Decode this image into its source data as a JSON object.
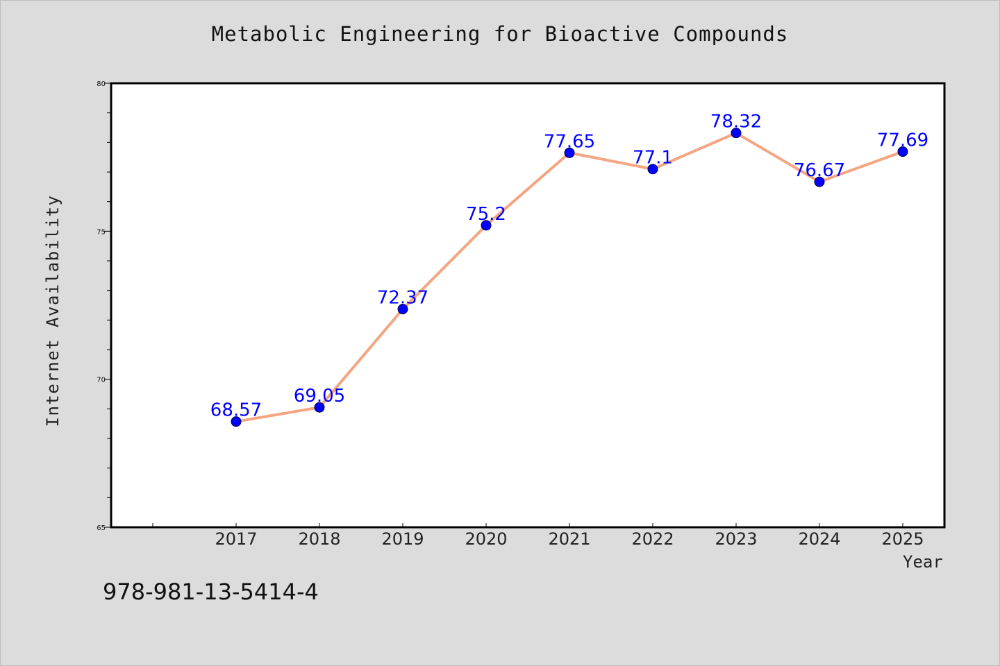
{
  "chart_data": {
    "type": "line",
    "title": "Metabolic Engineering for Bioactive Compounds",
    "xlabel": "Year",
    "ylabel": "Internet Availability",
    "categories": [
      "2017",
      "2018",
      "2019",
      "2020",
      "2021",
      "2022",
      "2023",
      "2024",
      "2025"
    ],
    "series": [
      {
        "values": [
          68.57,
          69.05,
          72.37,
          75.2,
          77.65,
          77.1,
          78.32,
          76.67,
          77.69
        ],
        "data_labels": [
          "68.57",
          "69.05",
          "72.37",
          "75.2",
          "77.65",
          "77.1",
          "78.32",
          "76.67",
          "77.69"
        ]
      }
    ],
    "ylim": [
      65,
      80
    ],
    "yticks": [
      65,
      70,
      75,
      80
    ],
    "grid": false,
    "colors": {
      "line": "#f4a582",
      "marker": "#0000ff",
      "label": "#0000ff",
      "plot_bg": "#ffffff",
      "figure_bg": "#dcdcdc"
    }
  },
  "footer": {
    "isbn": "978-981-13-5414-4"
  }
}
